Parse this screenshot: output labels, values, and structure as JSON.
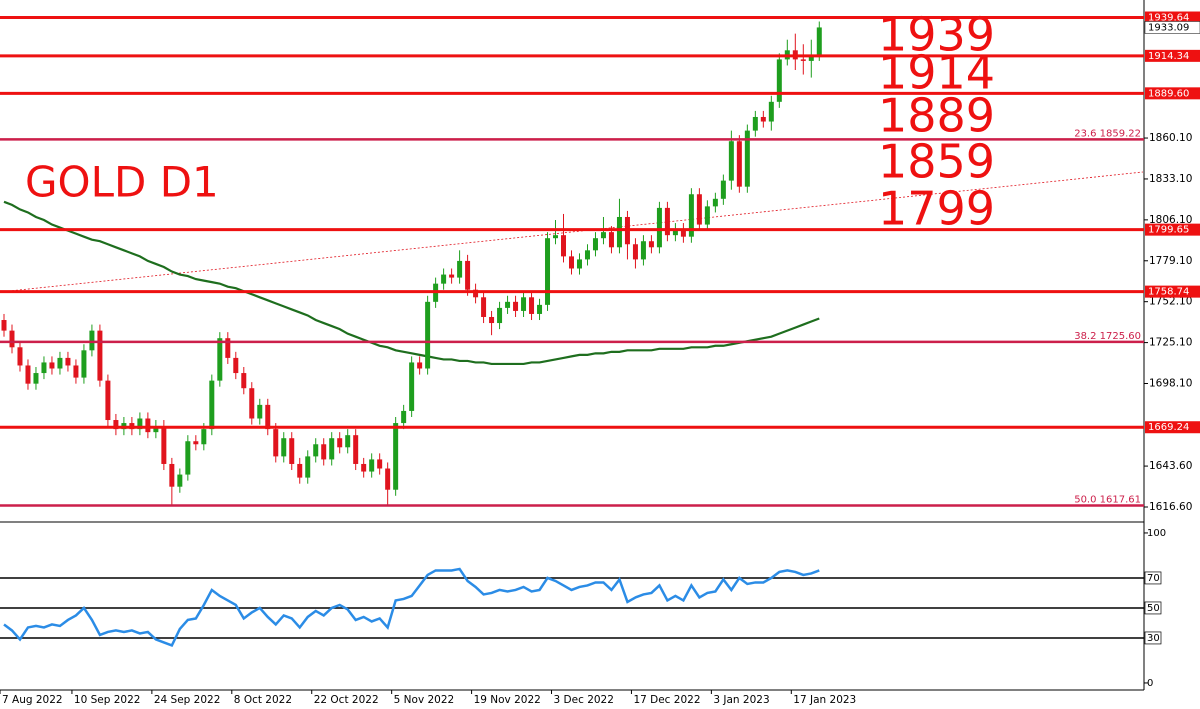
{
  "chart_data": [
    {
      "type": "candlestick",
      "title": "GOLD D1",
      "xlim": [
        0,
        143
      ],
      "xticks": [
        {
          "value": 0,
          "label": "7 Aug 2022"
        },
        {
          "value": 9,
          "label": "10 Sep 2022"
        },
        {
          "value": 19,
          "label": "24 Sep 2022"
        },
        {
          "value": 29,
          "label": "8 Oct 2022"
        },
        {
          "value": 39,
          "label": "22 Oct 2022"
        },
        {
          "value": 49,
          "label": "5 Nov 2022"
        },
        {
          "value": 59,
          "label": "19 Nov 2022"
        },
        {
          "value": 69,
          "label": "3 Dec 2022"
        },
        {
          "value": 79,
          "label": "17 Dec 2022"
        },
        {
          "value": 89,
          "label": "3 Jan 2023"
        },
        {
          "value": 99,
          "label": "17 Jan 2023"
        }
      ],
      "ylim": [
        1606.7,
        1951.2
      ],
      "yticks": [
        {
          "value": 1616.6,
          "label": "1616.60"
        },
        {
          "value": 1643.6,
          "label": "1643.60"
        },
        {
          "value": 1698.1,
          "label": "1698.10"
        },
        {
          "value": 1725.1,
          "label": "1725.10"
        },
        {
          "value": 1752.1,
          "label": "1752.10"
        },
        {
          "value": 1779.1,
          "label": "1779.10"
        },
        {
          "value": 1806.1,
          "label": "1806.10"
        },
        {
          "value": 1833.1,
          "label": "1833.10"
        },
        {
          "value": 1860.1,
          "label": "1860.10"
        }
      ],
      "up_color": "#1e9e1e",
      "down_color": "#e0141e",
      "open": [
        1740,
        1733,
        1722,
        1710,
        1698,
        1705,
        1712,
        1708,
        1715,
        1710,
        1702,
        1720,
        1733,
        1700,
        1674,
        1668,
        1672,
        1668,
        1675,
        1666,
        1670,
        1645,
        1630,
        1638,
        1660,
        1658,
        1668,
        1700,
        1728,
        1715,
        1705,
        1695,
        1675,
        1684,
        1668,
        1650,
        1662,
        1645,
        1636,
        1650,
        1658,
        1648,
        1662,
        1656,
        1664,
        1645,
        1640,
        1648,
        1642,
        1628,
        1672,
        1680,
        1712,
        1708,
        1752,
        1764,
        1770,
        1768,
        1779,
        1760,
        1755,
        1742,
        1738,
        1748,
        1752,
        1746,
        1755,
        1744,
        1750,
        1794,
        1796,
        1782,
        1774,
        1780,
        1786,
        1794,
        1798,
        1788,
        1808,
        1790,
        1780,
        1792,
        1788,
        1814,
        1796,
        1800,
        1795,
        1823,
        1803,
        1815,
        1820,
        1832,
        1858,
        1828,
        1865,
        1874,
        1871,
        1884,
        1912,
        1918,
        1912,
        1911,
        1915
      ],
      "high": [
        1744,
        1737,
        1726,
        1714,
        1709,
        1716,
        1716,
        1719,
        1719,
        1714,
        1724,
        1737,
        1737,
        1704,
        1678,
        1676,
        1676,
        1679,
        1679,
        1674,
        1674,
        1649,
        1642,
        1664,
        1664,
        1672,
        1704,
        1732,
        1732,
        1719,
        1709,
        1699,
        1688,
        1688,
        1672,
        1666,
        1666,
        1649,
        1654,
        1662,
        1662,
        1666,
        1666,
        1668,
        1668,
        1649,
        1652,
        1652,
        1646,
        1676,
        1684,
        1716,
        1716,
        1756,
        1768,
        1774,
        1774,
        1786,
        1783,
        1764,
        1759,
        1746,
        1752,
        1756,
        1756,
        1759,
        1759,
        1754,
        1798,
        1806,
        1810,
        1786,
        1784,
        1790,
        1798,
        1808,
        1802,
        1820,
        1812,
        1794,
        1796,
        1796,
        1818,
        1818,
        1804,
        1804,
        1827,
        1827,
        1819,
        1824,
        1836,
        1865,
        1862,
        1869,
        1878,
        1878,
        1888,
        1916,
        1925,
        1929,
        1922,
        1925,
        1937
      ],
      "low": [
        1729,
        1718,
        1706,
        1694,
        1694,
        1701,
        1704,
        1704,
        1706,
        1698,
        1698,
        1716,
        1696,
        1670,
        1664,
        1664,
        1664,
        1664,
        1662,
        1662,
        1641,
        1618,
        1626,
        1634,
        1654,
        1654,
        1664,
        1696,
        1711,
        1701,
        1691,
        1671,
        1671,
        1664,
        1646,
        1646,
        1641,
        1632,
        1632,
        1646,
        1644,
        1644,
        1652,
        1652,
        1641,
        1636,
        1636,
        1638,
        1618,
        1624,
        1668,
        1676,
        1704,
        1704,
        1748,
        1760,
        1764,
        1764,
        1756,
        1751,
        1738,
        1730,
        1734,
        1744,
        1742,
        1742,
        1740,
        1740,
        1746,
        1790,
        1778,
        1770,
        1770,
        1776,
        1782,
        1790,
        1784,
        1784,
        1780,
        1774,
        1776,
        1784,
        1784,
        1792,
        1792,
        1791,
        1791,
        1799,
        1799,
        1811,
        1816,
        1826,
        1824,
        1824,
        1861,
        1867,
        1865,
        1880,
        1908,
        1905,
        1902,
        1900,
        1911
      ],
      "close": [
        1733,
        1722,
        1710,
        1698,
        1705,
        1712,
        1708,
        1715,
        1710,
        1702,
        1720,
        1733,
        1700,
        1674,
        1668,
        1672,
        1668,
        1675,
        1666,
        1670,
        1645,
        1630,
        1638,
        1660,
        1658,
        1668,
        1700,
        1728,
        1715,
        1705,
        1695,
        1675,
        1684,
        1668,
        1650,
        1662,
        1645,
        1636,
        1650,
        1658,
        1648,
        1662,
        1656,
        1664,
        1645,
        1640,
        1648,
        1642,
        1628,
        1672,
        1680,
        1712,
        1708,
        1752,
        1764,
        1770,
        1768,
        1779,
        1760,
        1755,
        1742,
        1738,
        1748,
        1752,
        1746,
        1755,
        1744,
        1750,
        1794,
        1796,
        1782,
        1774,
        1780,
        1786,
        1794,
        1798,
        1788,
        1808,
        1790,
        1780,
        1792,
        1788,
        1814,
        1796,
        1800,
        1795,
        1823,
        1803,
        1815,
        1820,
        1832,
        1858,
        1828,
        1865,
        1874,
        1871,
        1884,
        1912,
        1918,
        1912,
        1911,
        1915,
        1933.09
      ],
      "ma": {
        "color": "#1e6e1e",
        "values": [
          1818,
          1816,
          1813,
          1811,
          1808,
          1806,
          1803,
          1801,
          1799,
          1797,
          1795,
          1793,
          1792,
          1790,
          1788,
          1786,
          1784,
          1782,
          1779,
          1777,
          1775,
          1772,
          1770,
          1769,
          1767,
          1766,
          1765,
          1764,
          1762,
          1761,
          1759,
          1757,
          1755,
          1753,
          1751,
          1749,
          1747,
          1745,
          1743,
          1740,
          1738,
          1736,
          1734,
          1731,
          1729,
          1727,
          1725,
          1723,
          1722,
          1720,
          1719,
          1718,
          1717,
          1716,
          1715,
          1714,
          1714,
          1713,
          1713,
          1712,
          1712,
          1711,
          1711,
          1711,
          1711,
          1711,
          1712,
          1712,
          1713,
          1714,
          1715,
          1716,
          1717,
          1717,
          1718,
          1718,
          1719,
          1719,
          1720,
          1720,
          1720,
          1720,
          1721,
          1721,
          1721,
          1721,
          1722,
          1722,
          1722,
          1723,
          1723,
          1724,
          1725,
          1726,
          1727,
          1728,
          1729,
          1731,
          1733,
          1735,
          1737,
          1739,
          1741
        ]
      },
      "trendline": {
        "color": "#e0141e",
        "x": [
          0,
          143
        ],
        "y": [
          1758.5,
          1837.7
        ]
      },
      "levels": [
        {
          "value": 1939.64,
          "label": "1939.64"
        },
        {
          "value": 1914.34,
          "label": "1914.34"
        },
        {
          "value": 1889.6,
          "label": "1889.60"
        },
        {
          "value": 1799.65,
          "label": "1799.65"
        },
        {
          "value": 1758.74,
          "label": "1758.74"
        },
        {
          "value": 1669.24,
          "label": "1669.24"
        }
      ],
      "level_color": "#ee1111",
      "fib_levels": [
        {
          "value": 1859.22,
          "label": "23.6 1859.22"
        },
        {
          "value": 1725.6,
          "label": "38.2 1725.60"
        },
        {
          "value": 1617.61,
          "label": "50.0 1617.61"
        }
      ],
      "fib_color": "#cc1f4a",
      "bid": {
        "value": 1933.09,
        "label": "1933.09"
      },
      "big_labels": [
        "1939",
        "1914",
        "1889",
        "1859",
        "1799"
      ]
    },
    {
      "type": "line",
      "ylim": [
        -4.7,
        107.3
      ],
      "yticks": [
        0,
        30,
        50,
        70,
        100
      ],
      "levels": [
        30,
        50,
        70
      ],
      "series": [
        {
          "color": "#2b8ce6",
          "values": [
            39,
            35,
            29,
            37,
            38,
            37,
            39,
            38,
            42,
            45,
            50,
            42,
            32,
            34,
            35,
            34,
            35,
            33,
            34,
            29,
            27,
            25,
            36,
            42,
            43,
            52,
            62,
            58,
            55,
            52,
            43,
            47,
            50,
            44,
            39,
            45,
            43,
            37,
            44,
            48,
            45,
            50,
            52,
            49,
            42,
            44,
            41,
            43,
            37,
            55,
            56,
            58,
            65,
            72,
            75,
            75,
            75,
            76,
            68,
            64,
            59,
            60,
            62,
            61,
            62,
            64,
            61,
            62,
            70,
            68,
            65,
            62,
            64,
            65,
            67,
            67,
            62,
            69,
            54,
            57,
            59,
            60,
            65,
            55,
            58,
            55,
            65,
            57,
            60,
            61,
            69,
            62,
            70,
            66,
            67,
            67,
            70,
            74,
            75,
            74,
            72,
            73,
            75
          ]
        }
      ]
    }
  ]
}
